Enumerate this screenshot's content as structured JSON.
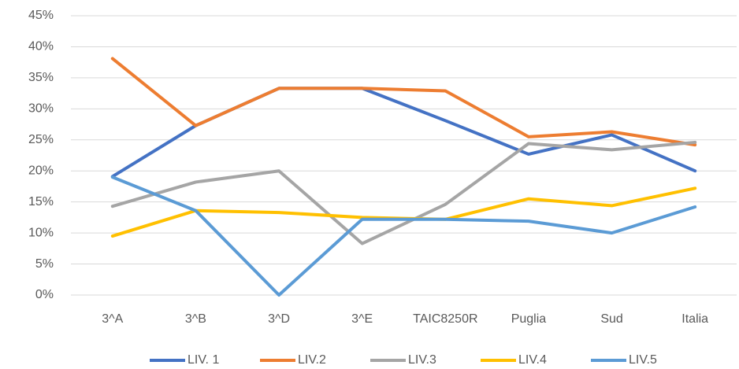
{
  "chart_data": {
    "type": "line",
    "categories": [
      "3^A",
      "3^B",
      "3^D",
      "3^E",
      "TAIC8250R",
      "Puglia",
      "Sud",
      "Italia"
    ],
    "series": [
      {
        "name": "LIV. 1",
        "color": "#4472c4",
        "values": [
          19.1,
          27.3,
          33.3,
          33.3,
          28.1,
          22.7,
          25.8,
          20.0
        ]
      },
      {
        "name": "LIV.2",
        "color": "#ed7d31",
        "values": [
          38.1,
          27.3,
          33.3,
          33.3,
          32.9,
          25.5,
          26.3,
          24.2
        ]
      },
      {
        "name": "LIV.3",
        "color": "#a5a5a5",
        "values": [
          14.3,
          18.2,
          20.0,
          8.3,
          14.6,
          24.4,
          23.4,
          24.6
        ]
      },
      {
        "name": "LIV.4",
        "color": "#ffc000",
        "values": [
          9.5,
          13.6,
          13.3,
          12.5,
          12.2,
          15.5,
          14.4,
          17.2
        ]
      },
      {
        "name": "LIV.5",
        "color": "#5b9bd5",
        "values": [
          19.0,
          13.6,
          0,
          12.2,
          12.2,
          11.9,
          10.0,
          14.2
        ]
      }
    ],
    "ylim": [
      0,
      45
    ],
    "yticks": [
      {
        "value": 0,
        "label": "0%"
      },
      {
        "value": 5,
        "label": "5%"
      },
      {
        "value": 10,
        "label": "10%"
      },
      {
        "value": 15,
        "label": "15%"
      },
      {
        "value": 20,
        "label": "20%"
      },
      {
        "value": 25,
        "label": "25%"
      },
      {
        "value": 30,
        "label": "30%"
      },
      {
        "value": 35,
        "label": "35%"
      },
      {
        "value": 40,
        "label": "40%"
      },
      {
        "value": 45,
        "label": "45%"
      }
    ],
    "grid": true,
    "legend": "bottom"
  }
}
